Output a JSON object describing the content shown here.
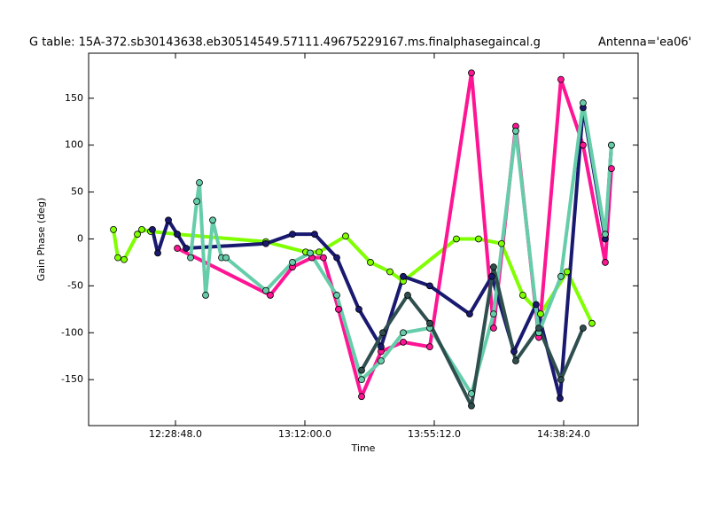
{
  "chart_data": {
    "type": "line",
    "title": "G table: 15A-372.sb30143638.eb30514549.57111.49675229167.ms.finalphasegaincal.g",
    "annotation": "Antenna='ea06'",
    "xlabel": "Time",
    "ylabel": "Gain Phase (deg)",
    "xlim": [
      43188,
      54195
    ],
    "ylim": [
      -199,
      198
    ],
    "xticks": [
      {
        "value": 44928,
        "label": "12:28:48.0"
      },
      {
        "value": 47520,
        "label": "13:12:00.0"
      },
      {
        "value": 50112,
        "label": "13:55:12.0"
      },
      {
        "value": 52704,
        "label": "14:38:24.0"
      }
    ],
    "yticks": [
      -150,
      -100,
      -50,
      0,
      50,
      100,
      150
    ],
    "series": [
      {
        "color": "#7fff00",
        "x": [
          43686,
          43774,
          43898,
          44165,
          44253,
          44431,
          44964,
          46739,
          47537,
          47804,
          48336,
          48833,
          49224,
          49490,
          50555,
          50999,
          51460,
          51886,
          52241,
          52774,
          53271
        ],
        "values": [
          10,
          -20,
          -22,
          5,
          10,
          8,
          5,
          -3,
          -14,
          -14,
          3,
          -25,
          -35,
          -45,
          0,
          0,
          -5,
          -60,
          -80,
          -35,
          -90
        ]
      },
      {
        "color": "#ff1493",
        "x": [
          44964,
          46827,
          47271,
          47662,
          47892,
          48194,
          48656,
          49046,
          49490,
          50022,
          50857,
          51300,
          51744,
          52206,
          52649,
          53093,
          53537,
          53661
        ],
        "values": [
          -10,
          -60,
          -30,
          -20,
          -20,
          -75,
          -168,
          -120,
          -110,
          -115,
          177,
          -95,
          120,
          -105,
          170,
          100,
          -25,
          75
        ]
      },
      {
        "color": "#191970",
        "x": [
          44466,
          44573,
          44786,
          44964,
          45141,
          46739,
          47271,
          47715,
          48159,
          48602,
          49046,
          49490,
          50022,
          50821,
          51265,
          51709,
          52152,
          52632,
          53093,
          53537,
          53661
        ],
        "values": [
          10,
          -15,
          20,
          5,
          -10,
          -5,
          5,
          5,
          -20,
          -75,
          -115,
          -40,
          -50,
          -80,
          -40,
          -120,
          -70,
          -170,
          140,
          0,
          100
        ]
      },
      {
        "color": "#66cdaa",
        "x": [
          45230,
          45354,
          45407,
          45532,
          45674,
          45851,
          45940,
          46739,
          47271,
          47626,
          48159,
          48656,
          49046,
          49490,
          50022,
          50857,
          51300,
          51744,
          52206,
          52649,
          53093,
          53537,
          53661
        ],
        "values": [
          -20,
          40,
          60,
          -60,
          20,
          -20,
          -20,
          -55,
          -25,
          -15,
          -60,
          -150,
          -130,
          -100,
          -95,
          -165,
          -80,
          115,
          -100,
          -40,
          145,
          5,
          100
        ]
      },
      {
        "color": "#2f4f4f",
        "x": [
          48656,
          49082,
          49579,
          50022,
          50857,
          51300,
          51744,
          52206,
          52649,
          53093
        ],
        "values": [
          -140,
          -100,
          -60,
          -90,
          -178,
          -30,
          -130,
          -95,
          -150,
          -95
        ]
      }
    ]
  }
}
